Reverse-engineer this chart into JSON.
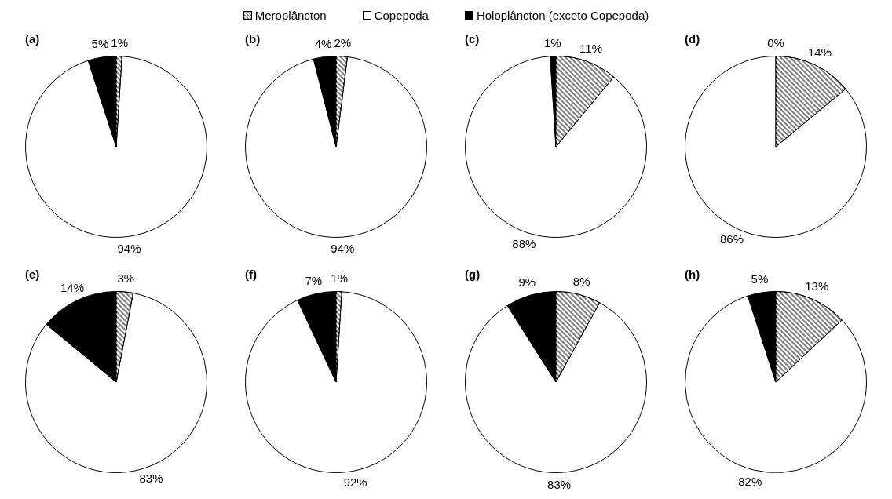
{
  "chart_data": [
    {
      "type": "pie",
      "title": "(a)",
      "legend": "top",
      "categories": [
        "Meroplâncton",
        "Copepoda",
        "Holoplâncton (exceto Copepoda)"
      ],
      "values": [
        1,
        94,
        5
      ],
      "value_labels": [
        "1%",
        "94%",
        "5%"
      ],
      "colors": [
        "#808080",
        "#ffffff",
        "#000000"
      ]
    },
    {
      "type": "pie",
      "title": "(b)",
      "categories": [
        null,
        null,
        null
      ],
      "values": [
        2,
        94,
        4
      ],
      "value_labels": [
        "2%",
        "94%",
        "4%"
      ],
      "colors": [
        "#808080",
        "#ffffff",
        "#000000"
      ]
    },
    {
      "type": "pie",
      "title": "(c)",
      "categories": [
        null,
        null,
        null
      ],
      "values": [
        11,
        88,
        1
      ],
      "value_labels": [
        "11%",
        "88%",
        "1%"
      ],
      "colors": [
        "#808080",
        "#ffffff",
        "#000000"
      ]
    },
    {
      "type": "pie",
      "title": "(d)",
      "categories": [
        null,
        null,
        null
      ],
      "values": [
        14,
        86,
        0
      ],
      "value_labels": [
        "14%",
        "86%",
        "0%"
      ],
      "colors": [
        "#808080",
        "#ffffff",
        "#000000"
      ]
    },
    {
      "type": "pie",
      "title": "(e)",
      "categories": [
        null,
        null,
        null
      ],
      "values": [
        3,
        83,
        14
      ],
      "value_labels": [
        "3%",
        "83%",
        "14%"
      ],
      "colors": [
        "#808080",
        "#ffffff",
        "#000000"
      ]
    },
    {
      "type": "pie",
      "title": "(f)",
      "categories": [
        null,
        null,
        null
      ],
      "values": [
        1,
        92,
        7
      ],
      "value_labels": [
        "1%",
        "92%",
        "7%"
      ],
      "colors": [
        "#808080",
        "#ffffff",
        "#000000"
      ]
    },
    {
      "type": "pie",
      "title": "(g)",
      "categories": [
        null,
        null,
        null
      ],
      "values": [
        8,
        83,
        9
      ],
      "value_labels": [
        "8%",
        "83%",
        "9%"
      ],
      "colors": [
        "#808080",
        "#ffffff",
        "#000000"
      ]
    },
    {
      "type": "pie",
      "title": "(h)",
      "categories": [
        null,
        null,
        null
      ],
      "values": [
        13,
        82,
        5
      ],
      "value_labels": [
        "13%",
        "82%",
        "5%"
      ],
      "colors": [
        "#808080",
        "#ffffff",
        "#000000"
      ]
    }
  ]
}
